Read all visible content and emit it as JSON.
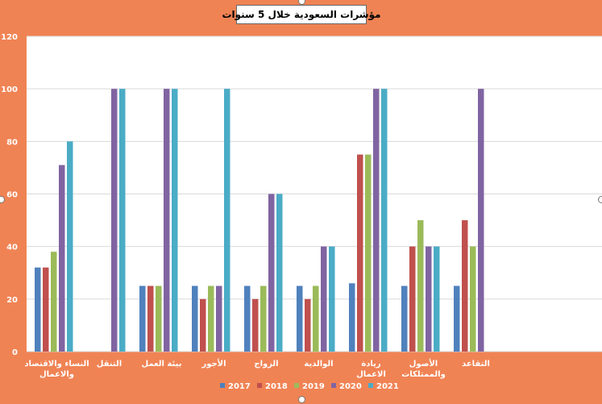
{
  "chart_data": {
    "type": "bar",
    "title": "مؤشرات السعودية خلال 5 سنوات",
    "categories": [
      "النساء والاقتصاد والاعمال",
      "التنقل",
      "بيئة العمل",
      "الأجور",
      "الزواج",
      "الوالدية",
      "ريادة الاعمال",
      "الأصول والممتلكات",
      "التقاعد"
    ],
    "series": [
      {
        "name": "2017",
        "color": "#4f81bd",
        "values": [
          32,
          0,
          25,
          25,
          25,
          25,
          26,
          25,
          25
        ]
      },
      {
        "name": "2018",
        "color": "#c0504d",
        "values": [
          32,
          0,
          25,
          20,
          20,
          20,
          75,
          40,
          50
        ]
      },
      {
        "name": "2019",
        "color": "#9bbb59",
        "values": [
          38,
          0,
          25,
          25,
          25,
          25,
          75,
          50,
          40
        ]
      },
      {
        "name": "2020",
        "color": "#8064a2",
        "values": [
          71,
          100,
          100,
          25,
          60,
          40,
          100,
          40,
          100
        ]
      },
      {
        "name": "2021",
        "color": "#4bacc6",
        "values": [
          80,
          100,
          100,
          100,
          60,
          40,
          100,
          40,
          0
        ]
      }
    ],
    "ylim": [
      0,
      120
    ],
    "yticks": [
      0,
      20,
      40,
      60,
      80,
      100,
      120
    ],
    "grid": true,
    "legend": "bottom",
    "background": "#f08354",
    "plot_background": "#ffffff"
  }
}
